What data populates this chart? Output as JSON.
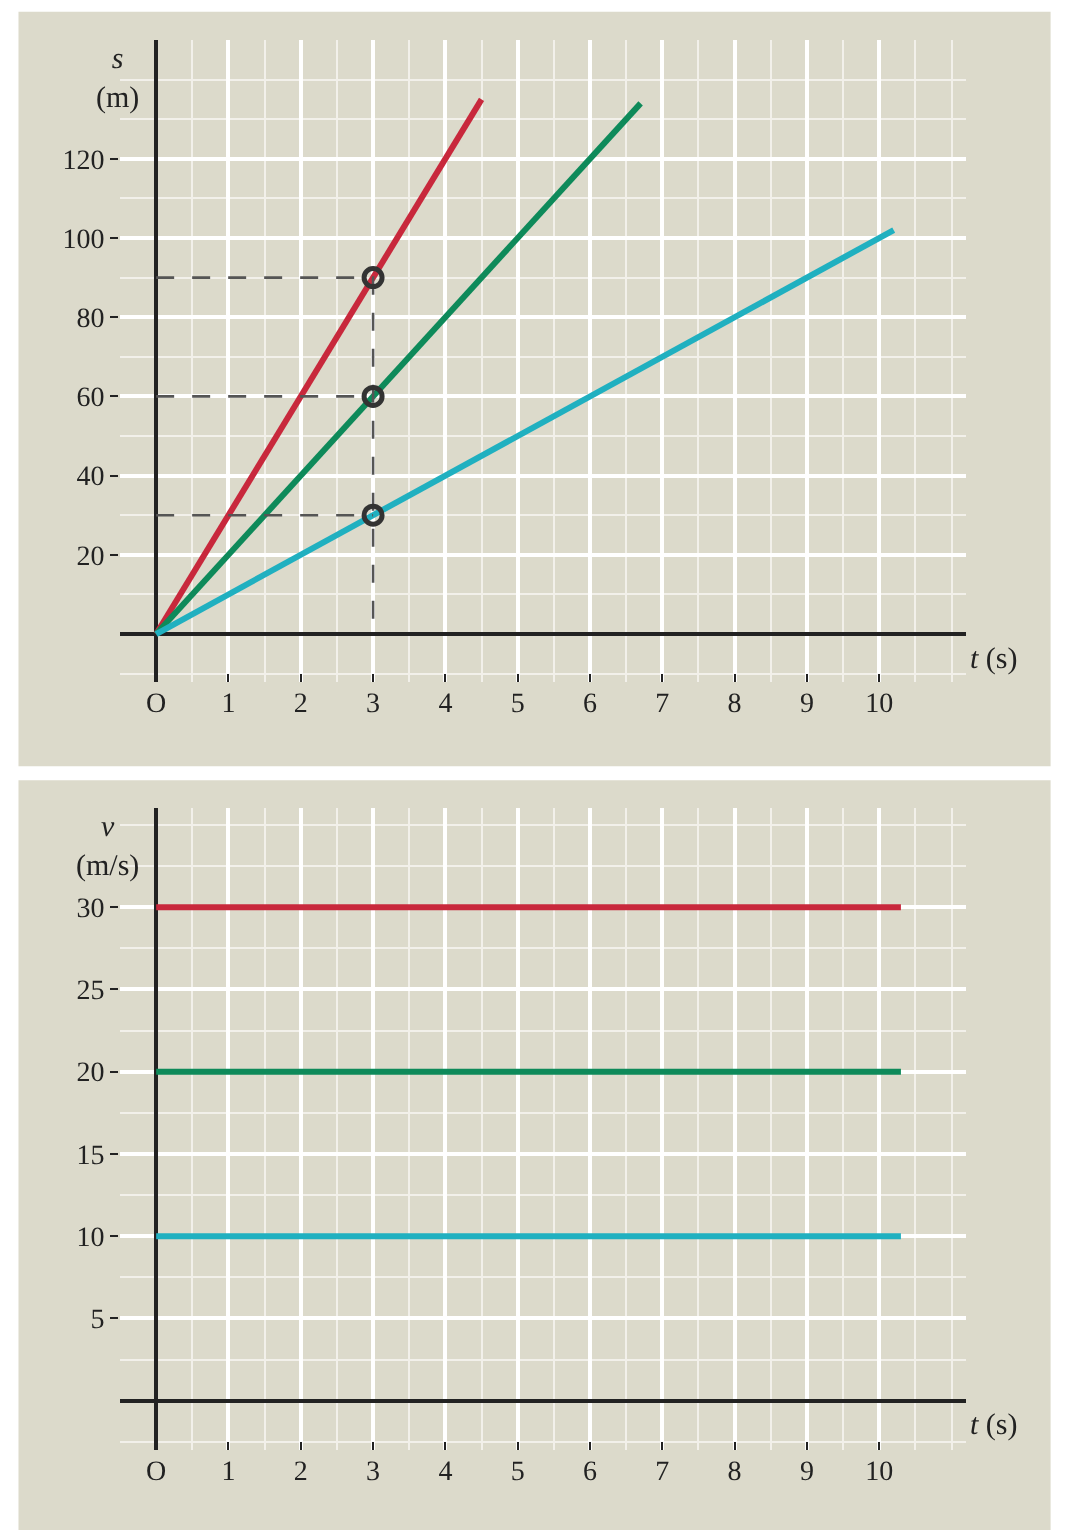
{
  "chart_data": [
    {
      "type": "line",
      "xlabel": "t (s)",
      "ylabel": "s (m)",
      "xlim": [
        -0.5,
        11.2
      ],
      "ylim": [
        -12,
        150
      ],
      "xticks": [
        {
          "value": 0,
          "label": "O"
        },
        1,
        2,
        3,
        4,
        5,
        6,
        7,
        8,
        9,
        10
      ],
      "yticks": [
        20,
        40,
        60,
        80,
        100,
        120
      ],
      "grid": true,
      "marker": "none",
      "line_style": "solid",
      "series": [
        {
          "color": "#c8283c",
          "x": [
            0,
            4.5
          ],
          "values": [
            0,
            135
          ]
        },
        {
          "color": "#0e8a5a",
          "x": [
            0,
            6.7
          ],
          "values": [
            0,
            134
          ]
        },
        {
          "color": "#20b0c0",
          "x": [
            0,
            10.2
          ],
          "values": [
            0,
            102
          ]
        },
        {
          "color": "#555555",
          "line_style": "dashed",
          "x": [
            0,
            3,
            3
          ],
          "values": [
            90,
            90,
            0
          ]
        },
        {
          "color": "#555555",
          "line_style": "dashed",
          "x": [
            0,
            3
          ],
          "values": [
            60,
            60
          ]
        },
        {
          "color": "#555555",
          "line_style": "dashed",
          "x": [
            0,
            3
          ],
          "values": [
            30,
            30
          ]
        },
        {
          "type": "scatter",
          "marker": "circle",
          "color": "#333333",
          "x": [
            3,
            3,
            3
          ],
          "values": [
            30,
            60,
            90
          ]
        }
      ]
    },
    {
      "type": "line",
      "xlabel": "t (s)",
      "ylabel": "v (m/s)",
      "xlim": [
        -0.5,
        11.2
      ],
      "ylim": [
        -3,
        36
      ],
      "xticks": [
        {
          "value": 0,
          "label": "O"
        },
        1,
        2,
        3,
        4,
        5,
        6,
        7,
        8,
        9,
        10
      ],
      "yticks": [
        5,
        10,
        15,
        20,
        25,
        30
      ],
      "grid": true,
      "marker": "none",
      "line_style": "solid",
      "series": [
        {
          "color": "#c8283c",
          "x": [
            0,
            10.3
          ],
          "values": [
            30,
            30
          ]
        },
        {
          "color": "#0e8a5a",
          "x": [
            0,
            10.3
          ],
          "values": [
            20,
            20
          ]
        },
        {
          "color": "#20b0c0",
          "x": [
            0,
            10.3
          ],
          "values": [
            10,
            10
          ]
        }
      ]
    }
  ]
}
